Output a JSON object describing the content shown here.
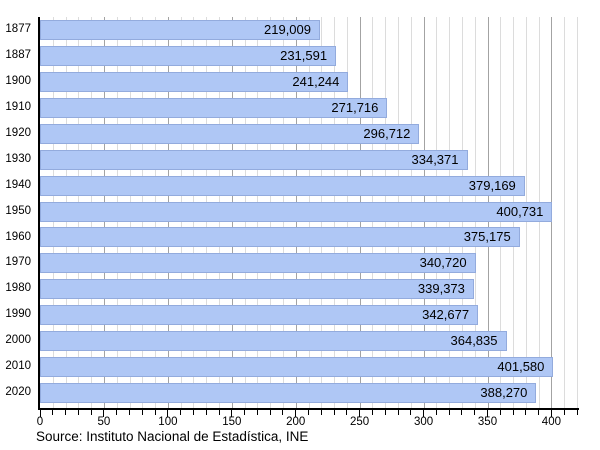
{
  "chart_data": {
    "type": "bar",
    "orientation": "horizontal",
    "categories": [
      "1877",
      "1887",
      "1900",
      "1910",
      "1920",
      "1930",
      "1940",
      "1950",
      "1960",
      "1970",
      "1980",
      "1990",
      "2000",
      "2010",
      "2020"
    ],
    "values": [
      219009,
      231591,
      241244,
      271716,
      296712,
      334371,
      379169,
      400731,
      375175,
      340720,
      339373,
      342677,
      364835,
      401580,
      388270
    ],
    "value_labels": [
      "219,009",
      "231,591",
      "241,244",
      "271,716",
      "296,712",
      "334,371",
      "379,169",
      "400,731",
      "375,175",
      "340,720",
      "339,373",
      "342,677",
      "364,835",
      "401,580",
      "388,270"
    ],
    "xlim": [
      0,
      420
    ],
    "x_scale": 1000,
    "x_minor_step": 10,
    "x_major_step": 50,
    "x_tick_labels": [
      "0",
      "50",
      "100",
      "150",
      "200",
      "250",
      "300",
      "350",
      "400"
    ],
    "grid": true,
    "legend": "none",
    "title": "",
    "source": "Source: Instituto Nacional de Estadística, INE",
    "colors": {
      "bar_fill": "#afc7f5",
      "bar_border": "#93abdd",
      "grid_minor": "#dcdcdc",
      "grid_major": "#a3a3a3",
      "axis": "#000000",
      "text": "#000000"
    }
  }
}
